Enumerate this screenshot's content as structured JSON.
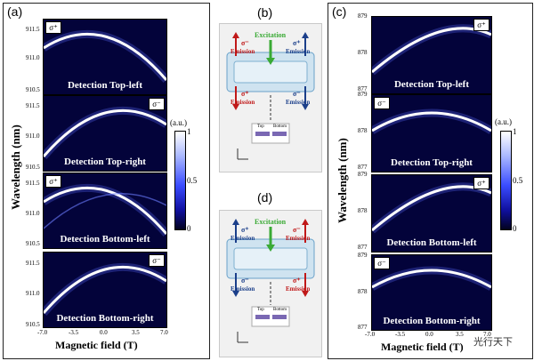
{
  "panels": {
    "a": "(a)",
    "b": "(b)",
    "c": "(c)",
    "d": "(d)"
  },
  "a": {
    "ylabel": "Wavelength (nm)",
    "xlabel": "Magnetic field (T)",
    "xticks": [
      "-7.0",
      "-3.5",
      "0.0",
      "3.5",
      "7.0"
    ],
    "yticks": [
      "911.5",
      "911.0",
      "910.5"
    ],
    "subplots": [
      {
        "sigma": "σ⁺",
        "label": "Detection Top-left"
      },
      {
        "sigma": "σ⁻",
        "label": "Detection Top-right"
      },
      {
        "sigma": "σ⁺",
        "label": "Detection Bottom-left"
      },
      {
        "sigma": "σ⁻",
        "label": "Detection Bottom-right"
      }
    ],
    "colorbar": {
      "unit": "(a.u.)",
      "max": "1",
      "mid": "0.5",
      "min": "0"
    }
  },
  "c": {
    "ylabel": "Wavelength (nm)",
    "xlabel": "Magnetic field (T)",
    "xticks": [
      "-7.0",
      "-3.5",
      "0.0",
      "3.5",
      "7.0"
    ],
    "yticks": [
      "879",
      "878",
      "877"
    ],
    "subplots": [
      {
        "sigma": "σ⁺",
        "label": "Detection Top-left"
      },
      {
        "sigma": "σ⁻",
        "label": "Detection Top-right"
      },
      {
        "sigma": "σ⁺",
        "label": "Detection Bottom-left"
      },
      {
        "sigma": "σ⁻",
        "label": "Detection Bottom-right"
      }
    ],
    "colorbar": {
      "unit": "(a.u.)",
      "max": "1",
      "mid": "0.5",
      "min": "0"
    }
  },
  "b": {
    "excitation": "Excitation",
    "emission": "Emission",
    "sigma_minus": "σ⁻",
    "sigma_plus": "σ⁺",
    "top": "Top",
    "bottom": "Bottom"
  },
  "d": {
    "excitation": "Excitation",
    "emission": "Emission",
    "sigma_minus": "σ⁻",
    "sigma_plus": "σ⁺",
    "top": "Top",
    "bottom": "Bottom"
  },
  "watermark": "光行天下",
  "colors": {
    "heat_bg": "#03033a",
    "curve": "#ffffff",
    "excitation": "#3aaa35",
    "emission_red": "#c01818",
    "emission_blue": "#1b3f8a"
  }
}
